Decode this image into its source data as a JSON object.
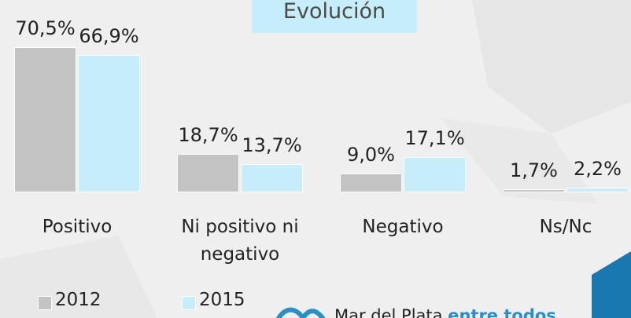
{
  "chart_data": {
    "type": "bar",
    "title": "Evolución",
    "categories": [
      "Positivo",
      "Ni positivo ni negativo",
      "Negativo",
      "Ns/Nc"
    ],
    "series": [
      {
        "name": "2012",
        "color": "#c3c3c3",
        "values": [
          70.5,
          18.7,
          9.0,
          1.7
        ],
        "value_labels": [
          "70,5%",
          "18,7%",
          "9,0%",
          "1,7%"
        ]
      },
      {
        "name": "2015",
        "color": "#c6eefa",
        "values": [
          66.9,
          13.7,
          17.1,
          2.2
        ],
        "value_labels": [
          "66,9%",
          "13,7%",
          "17,1%",
          "2,2%"
        ]
      }
    ],
    "ylim": [
      0,
      93.5
    ],
    "legend": "bottom-left"
  },
  "footer": {
    "logo_text": "Mar del Plata",
    "logo_highlight": "entre todos"
  }
}
